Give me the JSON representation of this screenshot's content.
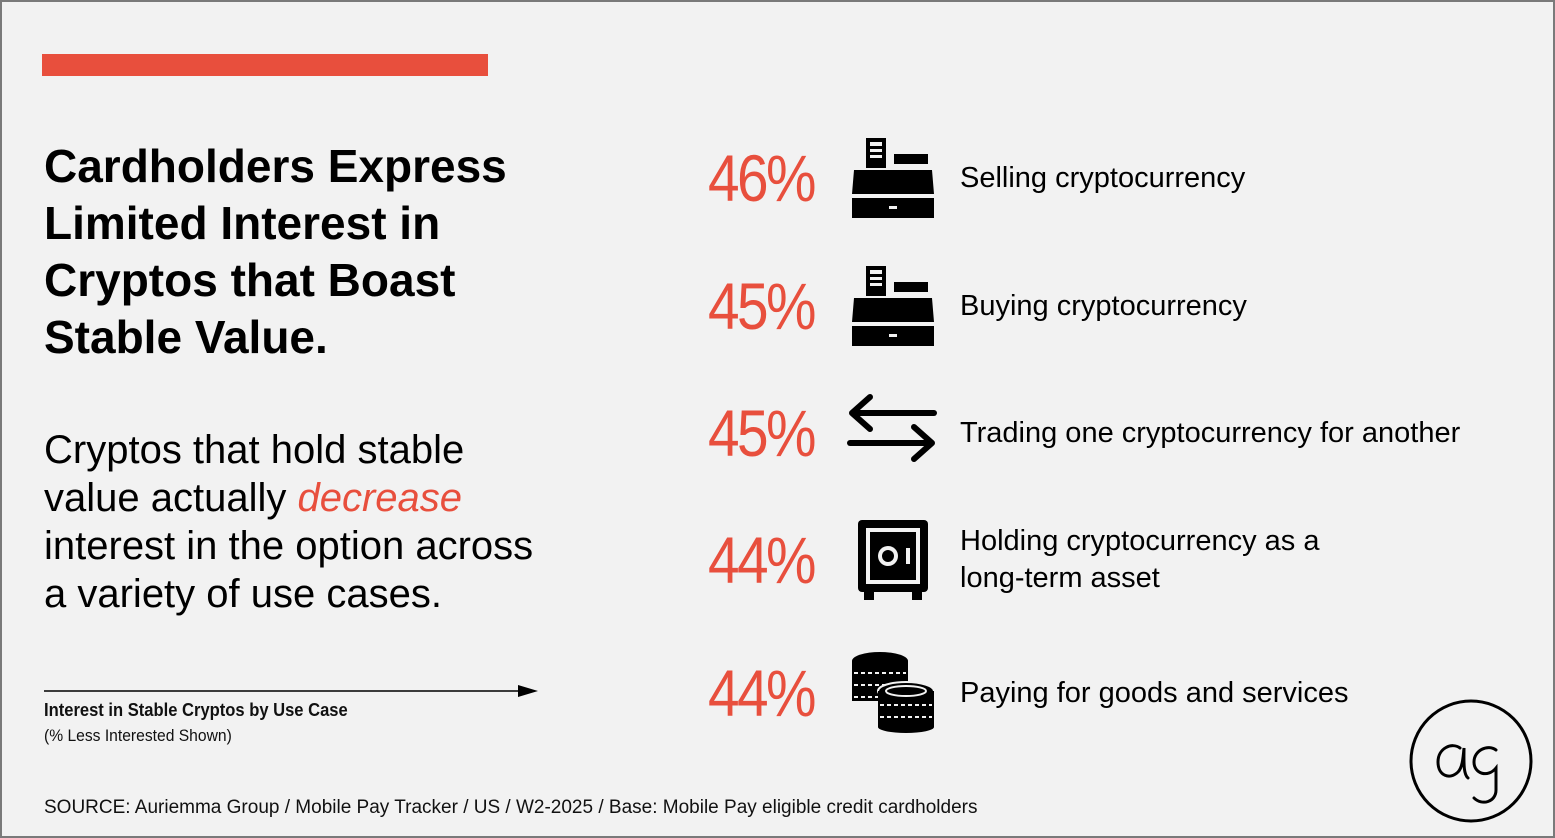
{
  "headline_lines": [
    "Cardholders Express",
    "Limited Interest in",
    "Cryptos that Boast",
    "Stable Value."
  ],
  "subtext": {
    "line1": "Cryptos that hold stable",
    "line2_before": "value actually ",
    "line2_emph": "decrease",
    "line3": "interest in the option across",
    "line4": "a variety of use cases."
  },
  "caption": {
    "title": "Interest in Stable Cryptos by Use Case",
    "subtitle": "(% Less Interested Shown)"
  },
  "source": "SOURCE: Auriemma Group / Mobile Pay Tracker / US / W2-2025 / Base: Mobile Pay eligible credit cardholders",
  "colors": {
    "accent": "#e84f3d",
    "background": "#f2f2f2",
    "text": "#000000"
  },
  "chart_data": {
    "type": "table",
    "title": "Interest in Stable Cryptos by Use Case",
    "subtitle": "(% Less Interested Shown)",
    "unit": "%",
    "rows": [
      {
        "value": 46,
        "display": "46%",
        "label": "Selling cryptocurrency",
        "icon": "cash-register-icon"
      },
      {
        "value": 45,
        "display": "45%",
        "label": "Buying cryptocurrency",
        "icon": "cash-register-icon"
      },
      {
        "value": 45,
        "display": "45%",
        "label": "Trading one cryptocurrency for another",
        "icon": "exchange-arrows-icon"
      },
      {
        "value": 44,
        "display": "44%",
        "label": "Holding cryptocurrency as a\nlong-term asset",
        "icon": "safe-icon"
      },
      {
        "value": 44,
        "display": "44%",
        "label": "Paying for goods and services",
        "icon": "coins-icon"
      }
    ]
  }
}
